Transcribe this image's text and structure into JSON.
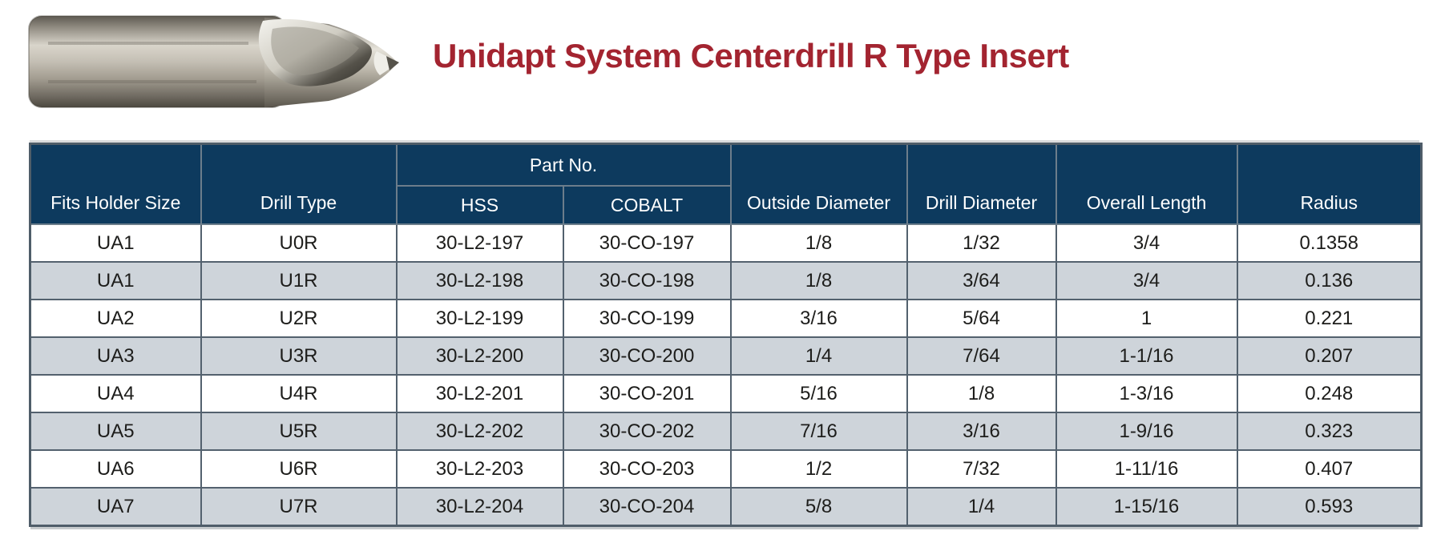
{
  "header": {
    "title": "Unidapt System Centerdrill R Type Insert",
    "title_color": "#a32430",
    "product_image": "centerdrill-r-type-insert-photo"
  },
  "table": {
    "colors": {
      "header_bg": "#0d3a5e",
      "header_text": "#ffffff",
      "row_bg": "#ffffff",
      "row_alt_bg": "#ced4da",
      "border": "#53616e",
      "text": "#1d1d1b"
    },
    "part_no_group_label": "Part No.",
    "columns": {
      "fits_holder_size": "Fits Holder Size",
      "drill_type": "Drill Type",
      "hss": "HSS",
      "cobalt": "COBALT",
      "outside_diameter": "Outside Diameter",
      "drill_diameter": "Drill Diameter",
      "overall_length": "Overall Length",
      "radius": "Radius"
    },
    "rows": [
      [
        "UA1",
        "U0R",
        "30-L2-197",
        "30-CO-197",
        "1/8",
        "1/32",
        "3/4",
        "0.1358"
      ],
      [
        "UA1",
        "U1R",
        "30-L2-198",
        "30-CO-198",
        "1/8",
        "3/64",
        "3/4",
        "0.136"
      ],
      [
        "UA2",
        "U2R",
        "30-L2-199",
        "30-CO-199",
        "3/16",
        "5/64",
        "1",
        "0.221"
      ],
      [
        "UA3",
        "U3R",
        "30-L2-200",
        "30-CO-200",
        "1/4",
        "7/64",
        "1-1/16",
        "0.207"
      ],
      [
        "UA4",
        "U4R",
        "30-L2-201",
        "30-CO-201",
        "5/16",
        "1/8",
        "1-3/16",
        "0.248"
      ],
      [
        "UA5",
        "U5R",
        "30-L2-202",
        "30-CO-202",
        "7/16",
        "3/16",
        "1-9/16",
        "0.323"
      ],
      [
        "UA6",
        "U6R",
        "30-L2-203",
        "30-CO-203",
        "1/2",
        "7/32",
        "1-11/16",
        "0.407"
      ],
      [
        "UA7",
        "U7R",
        "30-L2-204",
        "30-CO-204",
        "5/8",
        "1/4",
        "1-15/16",
        "0.593"
      ]
    ]
  }
}
